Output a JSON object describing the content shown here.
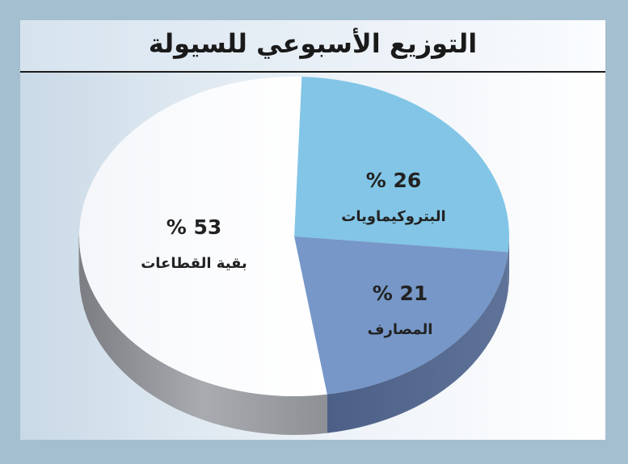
{
  "title": "التوزيع الأسبوعي للسيولة",
  "chart_data": {
    "type": "pie",
    "title": "التوزيع الأسبوعي للسيولة",
    "slices": [
      {
        "label": "البتروكيماويات",
        "value": 26,
        "value_label": "% 26",
        "color": "#82c5e6"
      },
      {
        "label": "المصارف",
        "value": 21,
        "value_label": "% 21",
        "color": "#7697c8"
      },
      {
        "label": "بقية القطاعات",
        "value": 53,
        "value_label": "% 53",
        "color": "#f4f7fa"
      }
    ]
  }
}
